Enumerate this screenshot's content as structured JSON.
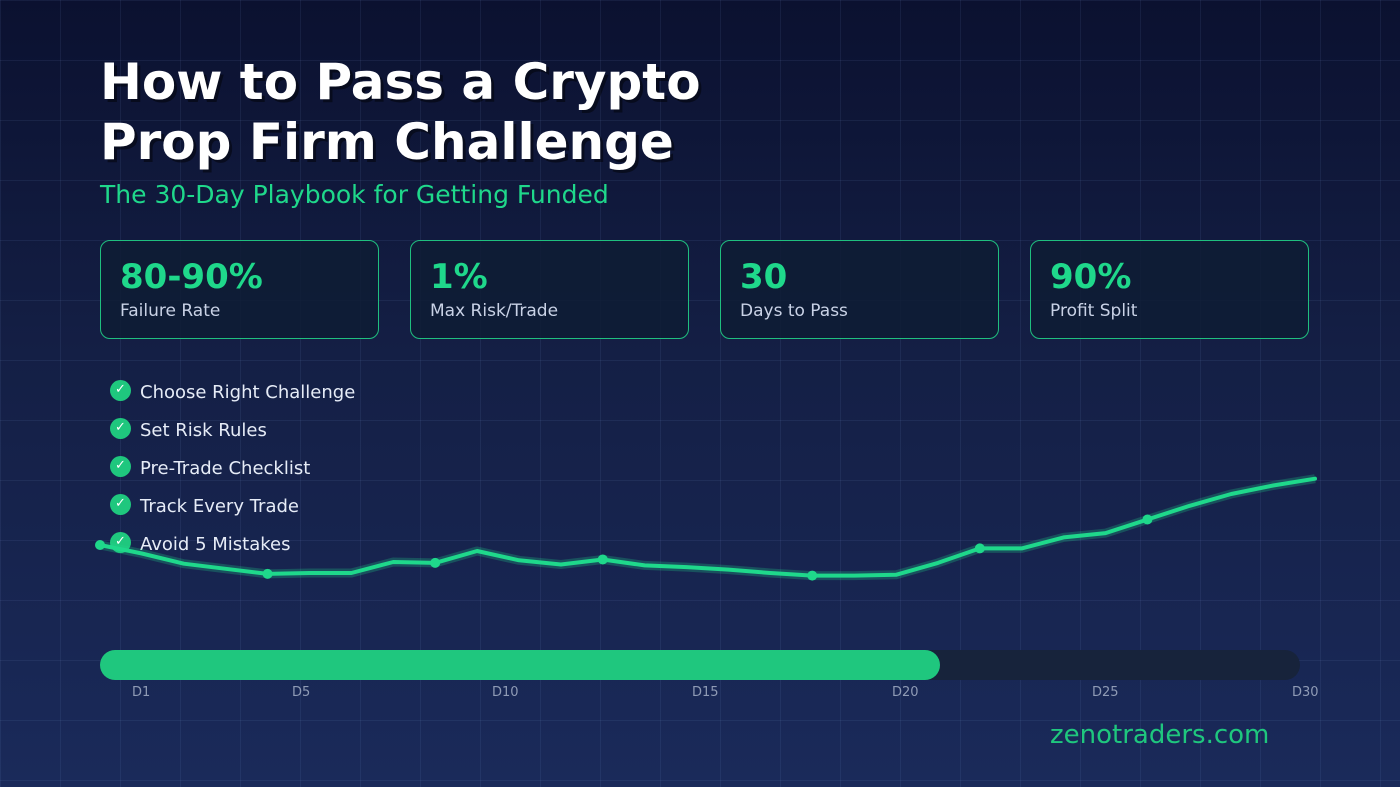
{
  "header": {
    "title_line1": "How to Pass a Crypto",
    "title_line2": "Prop Firm Challenge",
    "subtitle": "The 30-Day Playbook for Getting Funded"
  },
  "stats": [
    {
      "value": "80-90%",
      "label": "Failure Rate"
    },
    {
      "value": "1%",
      "label": "Max Risk/Trade"
    },
    {
      "value": "30",
      "label": "Days to Pass"
    },
    {
      "value": "90%",
      "label": "Profit Split"
    }
  ],
  "checklist": [
    "Choose Right Challenge",
    "Set Risk Rules",
    "Pre-Trade Checklist",
    "Track Every Trade",
    "Avoid 5 Mistakes"
  ],
  "check_icon": "✓",
  "progress": {
    "fraction": 0.7,
    "day_labels": [
      "D1",
      "D5",
      "D10",
      "D15",
      "D20",
      "D25",
      "D30"
    ]
  },
  "chart_data": {
    "type": "line",
    "x": [
      1,
      2,
      3,
      4,
      5,
      6,
      7,
      8,
      9,
      10,
      11,
      12,
      13,
      14,
      15,
      16,
      17,
      18,
      19,
      20,
      21,
      22,
      23,
      24,
      25,
      26,
      27,
      28,
      29,
      30
    ],
    "series": [
      {
        "values": [
          0,
          -0.5,
          -1.1,
          -1.4,
          -1.7,
          -1.65,
          -1.65,
          -1.0,
          -1.05,
          -0.35,
          -0.9,
          -1.15,
          -0.85,
          -1.2,
          -1.3,
          -1.45,
          -1.65,
          -1.8,
          -1.8,
          -1.75,
          -1.05,
          -0.2,
          -0.2,
          0.45,
          0.7,
          1.5,
          2.3,
          3.0,
          3.5,
          3.9
        ]
      }
    ],
    "marker_days": [
      1,
      5,
      9,
      13,
      18,
      22,
      26
    ],
    "colors": {
      "line": "#1fd88b",
      "progress": "#1fc77e",
      "accent": "#1fd88b"
    }
  },
  "footer": {
    "brand": "zenotraders.com"
  }
}
